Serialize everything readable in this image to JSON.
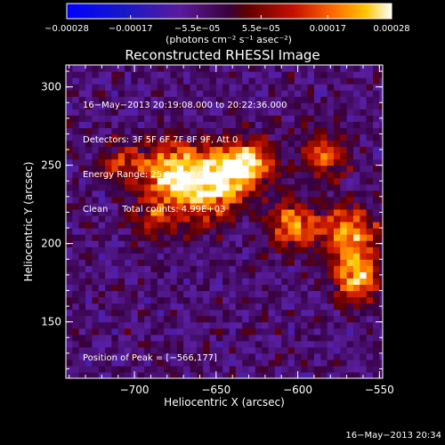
{
  "chart_data": {
    "type": "heatmap",
    "title": "Reconstructed RHESSI Image",
    "xlabel": "Heliocentric X (arcsec)",
    "ylabel": "Heliocentric Y (arcsec)",
    "xlim": [
      -742,
      -548
    ],
    "ylim": [
      114,
      314
    ],
    "x_ticks": [
      -700,
      -650,
      -600,
      -550
    ],
    "x_tick_labels": [
      "−700",
      "−650",
      "−600",
      "−550"
    ],
    "y_ticks": [
      150,
      200,
      250,
      300
    ],
    "y_tick_labels": [
      "150",
      "200",
      "250",
      "300"
    ],
    "colorbar": {
      "min": -0.00028,
      "max": 0.00028,
      "ticks": [
        -0.00028,
        -0.00017,
        -5.5e-05,
        5.5e-05,
        0.00017,
        0.00028
      ],
      "tick_labels": [
        "−0.00028",
        "−0.00017",
        "−5.5e−05",
        "5.5e−05",
        "0.00017",
        "0.00028"
      ],
      "units": "(photons cm⁻² s⁻¹ asec⁻²)"
    },
    "annotations": [
      "16−May−2013 20:19:08.000 to 20:22:36.000",
      "Detectors: 3F 5F 6F 7F 8F 9F, Att 0",
      "Energy Range: 25.0 − 50.0 keV",
      "Clean     Total counts: 4.99E+03"
    ],
    "peak_label": "Position of Peak = [−566,177]",
    "peak": [
      -566,
      177
    ],
    "sources": [
      {
        "x": -680,
        "y": 245,
        "amplitude": 1.0,
        "radius": 12
      },
      {
        "x": -660,
        "y": 232,
        "amplitude": 0.8,
        "radius": 14
      },
      {
        "x": -645,
        "y": 245,
        "amplitude": 0.85,
        "radius": 12
      },
      {
        "x": -630,
        "y": 250,
        "amplitude": 0.7,
        "radius": 10
      },
      {
        "x": -605,
        "y": 210,
        "amplitude": 0.9,
        "radius": 10
      },
      {
        "x": -585,
        "y": 255,
        "amplitude": 0.7,
        "radius": 10
      },
      {
        "x": -566,
        "y": 177,
        "amplitude": 1.0,
        "radius": 10
      },
      {
        "x": -570,
        "y": 205,
        "amplitude": 0.85,
        "radius": 12
      },
      {
        "x": -690,
        "y": 215,
        "amplitude": 0.45,
        "radius": 10
      },
      {
        "x": -710,
        "y": 250,
        "amplitude": 0.5,
        "radius": 9
      }
    ]
  },
  "footer": {
    "timestamp": "16−May−2013 20:34"
  }
}
